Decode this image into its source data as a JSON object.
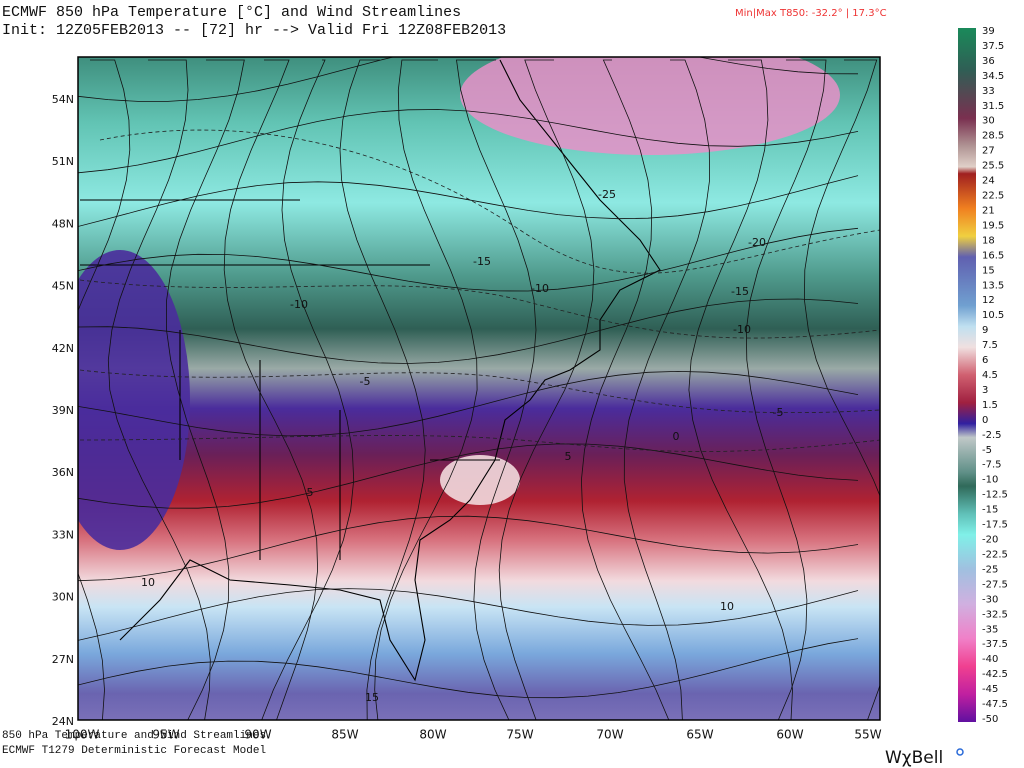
{
  "header": {
    "title": "ECMWF 850 hPa Temperature [°C] and Wind Streamlines",
    "init": "Init: 12Z05FEB2013 -- [72] hr --> Valid Fri 12Z08FEB2013",
    "minmax": "Min|Max T850: -32.2° |  17.3°C"
  },
  "map": {
    "lat_labels": [
      "54N",
      "51N",
      "48N",
      "45N",
      "42N",
      "39N",
      "36N",
      "33N",
      "30N",
      "27N",
      "24N"
    ],
    "lon_labels": [
      "100W",
      "95W",
      "90W",
      "85W",
      "80W",
      "75W",
      "70W",
      "65W",
      "60W",
      "55W"
    ],
    "contour_labels": [
      "-25",
      "-20",
      "-15",
      "-15",
      "-10",
      "-10",
      "-10",
      "-5",
      "-5",
      "0",
      "5",
      "5",
      "10",
      "10",
      "15"
    ]
  },
  "colorbar": {
    "labels": [
      "39",
      "37.5",
      "36",
      "34.5",
      "33",
      "31.5",
      "30",
      "28.5",
      "27",
      "25.5",
      "24",
      "22.5",
      "21",
      "19.5",
      "18",
      "16.5",
      "15",
      "13.5",
      "12",
      "10.5",
      "9",
      "7.5",
      "6",
      "4.5",
      "3",
      "1.5",
      "0",
      "-2.5",
      "-5",
      "-7.5",
      "-10",
      "-12.5",
      "-15",
      "-17.5",
      "-20",
      "-22.5",
      "-25",
      "-27.5",
      "-30",
      "-32.5",
      "-35",
      "-37.5",
      "-40",
      "-42.5",
      "-45",
      "-47.5",
      "-50"
    ]
  },
  "footer": {
    "line1": "850 hPa Temperature and Wind Streamlines",
    "line2": "ECMWF T1279 Deterministic Forecast Model",
    "logo": "WχBell"
  }
}
